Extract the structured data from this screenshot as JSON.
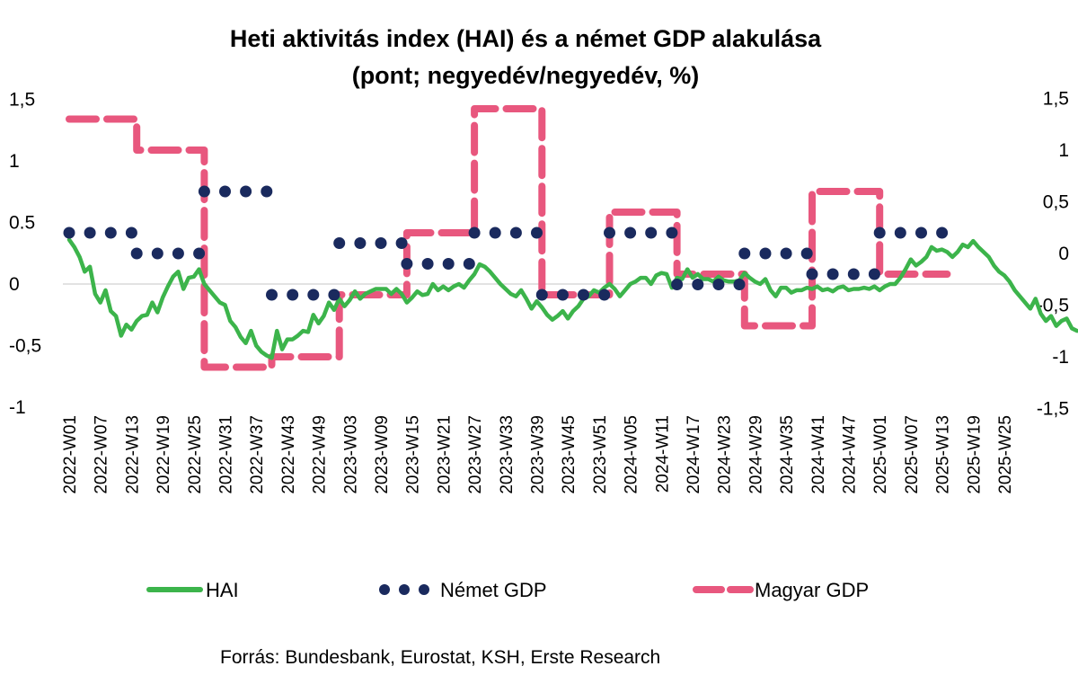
{
  "chart_data": {
    "type": "line",
    "title": "Heti aktivitás index (HAI) és a német GDP alakulása",
    "subtitle": "(pont; negyedév/negyedév, %)",
    "source": "Forrás: Bundesbank, Eurostat, KSH, Erste Research",
    "left_axis": {
      "ylim": [
        -1,
        1.5
      ],
      "ticks": [
        -1,
        -0.5,
        0,
        0.5,
        1,
        1.5
      ],
      "tick_labels": [
        "-1",
        "-0,5",
        "0",
        "0.5",
        "1",
        "1,5"
      ]
    },
    "right_axis": {
      "ylim": [
        -1.5,
        1.5
      ],
      "ticks": [
        -1.5,
        -1,
        -0.5,
        0,
        0.5,
        1,
        1.5
      ],
      "tick_labels": [
        "-1,5",
        "-1",
        "-0,5",
        "0",
        "0,5",
        "1",
        "1,5"
      ]
    },
    "x_tick_labels": [
      "2022-W01",
      "2022-W07",
      "2022-W13",
      "2022-W19",
      "2022-W25",
      "2022-W31",
      "2022-W37",
      "2022-W43",
      "2022-W49",
      "2023-W03",
      "2023-W09",
      "2023-W15",
      "2023-W21",
      "2023-W27",
      "2023-W33",
      "2023-W39",
      "2023-W45",
      "2023-W51",
      "2024-W05",
      "2024-W11",
      "2024-W17",
      "2024-W23",
      "2024-W29",
      "2024-W35",
      "2024-W41",
      "2024-W47",
      "2025-W01",
      "2025-W07",
      "2025-W13",
      "2025-W19",
      "2025-W25"
    ],
    "legend": {
      "position": "bottom",
      "items": [
        {
          "label": "HAI",
          "color": "#3cb44b",
          "style": "solid"
        },
        {
          "label": "Német GDP",
          "color": "#1a2a5e",
          "style": "dotted"
        },
        {
          "label": "Magyar GDP",
          "color": "#e8577e",
          "style": "dashed"
        }
      ]
    },
    "zero_line": true,
    "series": [
      {
        "name": "HAI",
        "axis": "left",
        "x_start": "2022-W01",
        "values": [
          0.36,
          0.3,
          0.22,
          0.1,
          0.14,
          -0.08,
          -0.15,
          -0.05,
          -0.22,
          -0.26,
          -0.42,
          -0.33,
          -0.37,
          -0.3,
          -0.26,
          -0.25,
          -0.15,
          -0.23,
          -0.11,
          -0.02,
          0.06,
          0.1,
          -0.04,
          0.05,
          0.06,
          0.12,
          0.0,
          -0.05,
          -0.1,
          -0.15,
          -0.17,
          -0.3,
          -0.35,
          -0.43,
          -0.48,
          -0.38,
          -0.5,
          -0.55,
          -0.58,
          -0.6,
          -0.38,
          -0.53,
          -0.45,
          -0.45,
          -0.42,
          -0.38,
          -0.39,
          -0.25,
          -0.32,
          -0.26,
          -0.15,
          -0.21,
          -0.12,
          -0.18,
          -0.13,
          -0.06,
          -0.12,
          -0.08,
          -0.06,
          -0.04,
          -0.04,
          -0.04,
          -0.08,
          -0.04,
          -0.08,
          -0.15,
          -0.11,
          -0.06,
          -0.09,
          -0.08,
          0.0,
          -0.05,
          -0.02,
          -0.05,
          -0.02,
          0.0,
          -0.03,
          0.03,
          0.08,
          0.16,
          0.14,
          0.1,
          0.05,
          0.0,
          -0.04,
          -0.08,
          -0.1,
          -0.05,
          -0.12,
          -0.2,
          -0.14,
          -0.19,
          -0.25,
          -0.29,
          -0.26,
          -0.22,
          -0.28,
          -0.22,
          -0.18,
          -0.12,
          -0.1,
          -0.05,
          -0.07,
          -0.03,
          0.0,
          -0.04,
          -0.1,
          -0.05,
          0.0,
          0.02,
          0.05,
          0.05,
          0.0,
          0.07,
          0.09,
          0.08,
          -0.03,
          0.05,
          0.04,
          0.12,
          0.05,
          0.08,
          0.04,
          0.04,
          0.02,
          0.06,
          0.03,
          0.02,
          0.02,
          0.03,
          0.09,
          0.05,
          0.02,
          0.0,
          0.04,
          -0.05,
          -0.1,
          -0.03,
          -0.03,
          -0.07,
          -0.05,
          -0.05,
          -0.03,
          -0.04,
          -0.02,
          -0.05,
          -0.04,
          -0.06,
          -0.03,
          -0.02,
          -0.05,
          -0.04,
          -0.04,
          -0.03,
          -0.04,
          -0.02,
          -0.05,
          -0.02,
          0.0,
          0.0,
          0.05,
          0.12,
          0.2,
          0.15,
          0.18,
          0.22,
          0.3,
          0.27,
          0.28,
          0.26,
          0.22,
          0.26,
          0.32,
          0.3,
          0.35,
          0.3,
          0.26,
          0.22,
          0.15,
          0.1,
          0.07,
          0.02,
          -0.05,
          -0.1,
          -0.15,
          -0.2,
          -0.12,
          -0.24,
          -0.3,
          -0.26,
          -0.34,
          -0.3,
          -0.28,
          -0.36,
          -0.38
        ]
      },
      {
        "name": "Német GDP",
        "axis": "right",
        "type": "quarterly-step",
        "quarters": [
          "2022-Q1",
          "2022-Q2",
          "2022-Q3",
          "2022-Q4",
          "2023-Q1",
          "2023-Q2",
          "2023-Q3",
          "2023-Q4",
          "2024-Q1",
          "2024-Q2",
          "2024-Q3",
          "2024-Q4",
          "2025-Q1"
        ],
        "start_weeks": [
          1,
          14,
          27,
          40,
          53,
          66,
          79,
          92,
          105,
          118,
          131,
          144,
          157
        ],
        "end_week": 170,
        "values": [
          0.2,
          0.0,
          0.6,
          -0.4,
          0.1,
          -0.1,
          0.2,
          -0.4,
          0.2,
          -0.3,
          0.0,
          -0.2,
          0.2
        ]
      },
      {
        "name": "Magyar GDP",
        "axis": "right",
        "type": "quarterly-step",
        "quarters": [
          "2022-Q1",
          "2022-Q2",
          "2022-Q3",
          "2022-Q4",
          "2023-Q1",
          "2023-Q2",
          "2023-Q3",
          "2023-Q4",
          "2024-Q1",
          "2024-Q2",
          "2024-Q3",
          "2024-Q4",
          "2025-Q1"
        ],
        "start_weeks": [
          1,
          14,
          27,
          40,
          53,
          66,
          79,
          92,
          105,
          118,
          131,
          144,
          157
        ],
        "end_week": 170,
        "values": [
          1.3,
          1.0,
          -1.1,
          -1.0,
          -0.4,
          0.2,
          1.4,
          -0.4,
          0.4,
          -0.2,
          -0.7,
          0.6,
          -0.2
        ]
      }
    ]
  }
}
